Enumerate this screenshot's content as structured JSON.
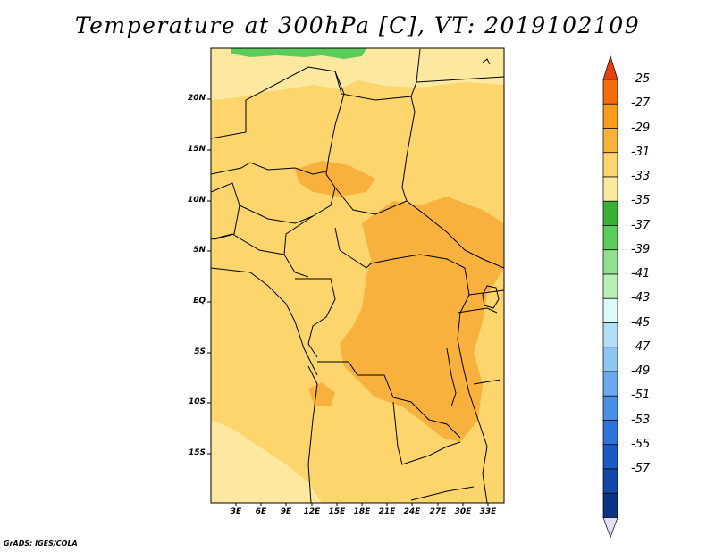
{
  "title": "Temperature at 300hPa [C], VT: 2019102109",
  "credit": "GrADS: IGES/COLA",
  "lat_labels": [
    "20N",
    "15N",
    "10N",
    "5N",
    "EQ",
    "5S",
    "10S",
    "15S"
  ],
  "lon_labels": [
    "3E",
    "6E",
    "9E",
    "12E",
    "15E",
    "18E",
    "21E",
    "24E",
    "27E",
    "30E",
    "33E"
  ],
  "colorbar": {
    "labels": [
      "-25",
      "-27",
      "-29",
      "-31",
      "-33",
      "-35",
      "-37",
      "-39",
      "-41",
      "-43",
      "-45",
      "-47",
      "-49",
      "-51",
      "-53",
      "-55",
      "-57"
    ],
    "colors": [
      "#e8400c",
      "#f46d09",
      "#f99b1d",
      "#f9b13e",
      "#fcd56c",
      "#fde8a0",
      "#37b034",
      "#5acc5a",
      "#8fe08f",
      "#b5f0b5",
      "#dcfbf8",
      "#b2def6",
      "#8ec6f3",
      "#6aa9ee",
      "#4a8fe6",
      "#2f73da",
      "#1d58c4",
      "#1447a8",
      "#0c3384",
      "#e0e0f8"
    ]
  },
  "map_colors": {
    "base": "#fcd56c",
    "warm": "#f9b13e",
    "cool": "#fde8a0",
    "green": "#5acc5a"
  }
}
